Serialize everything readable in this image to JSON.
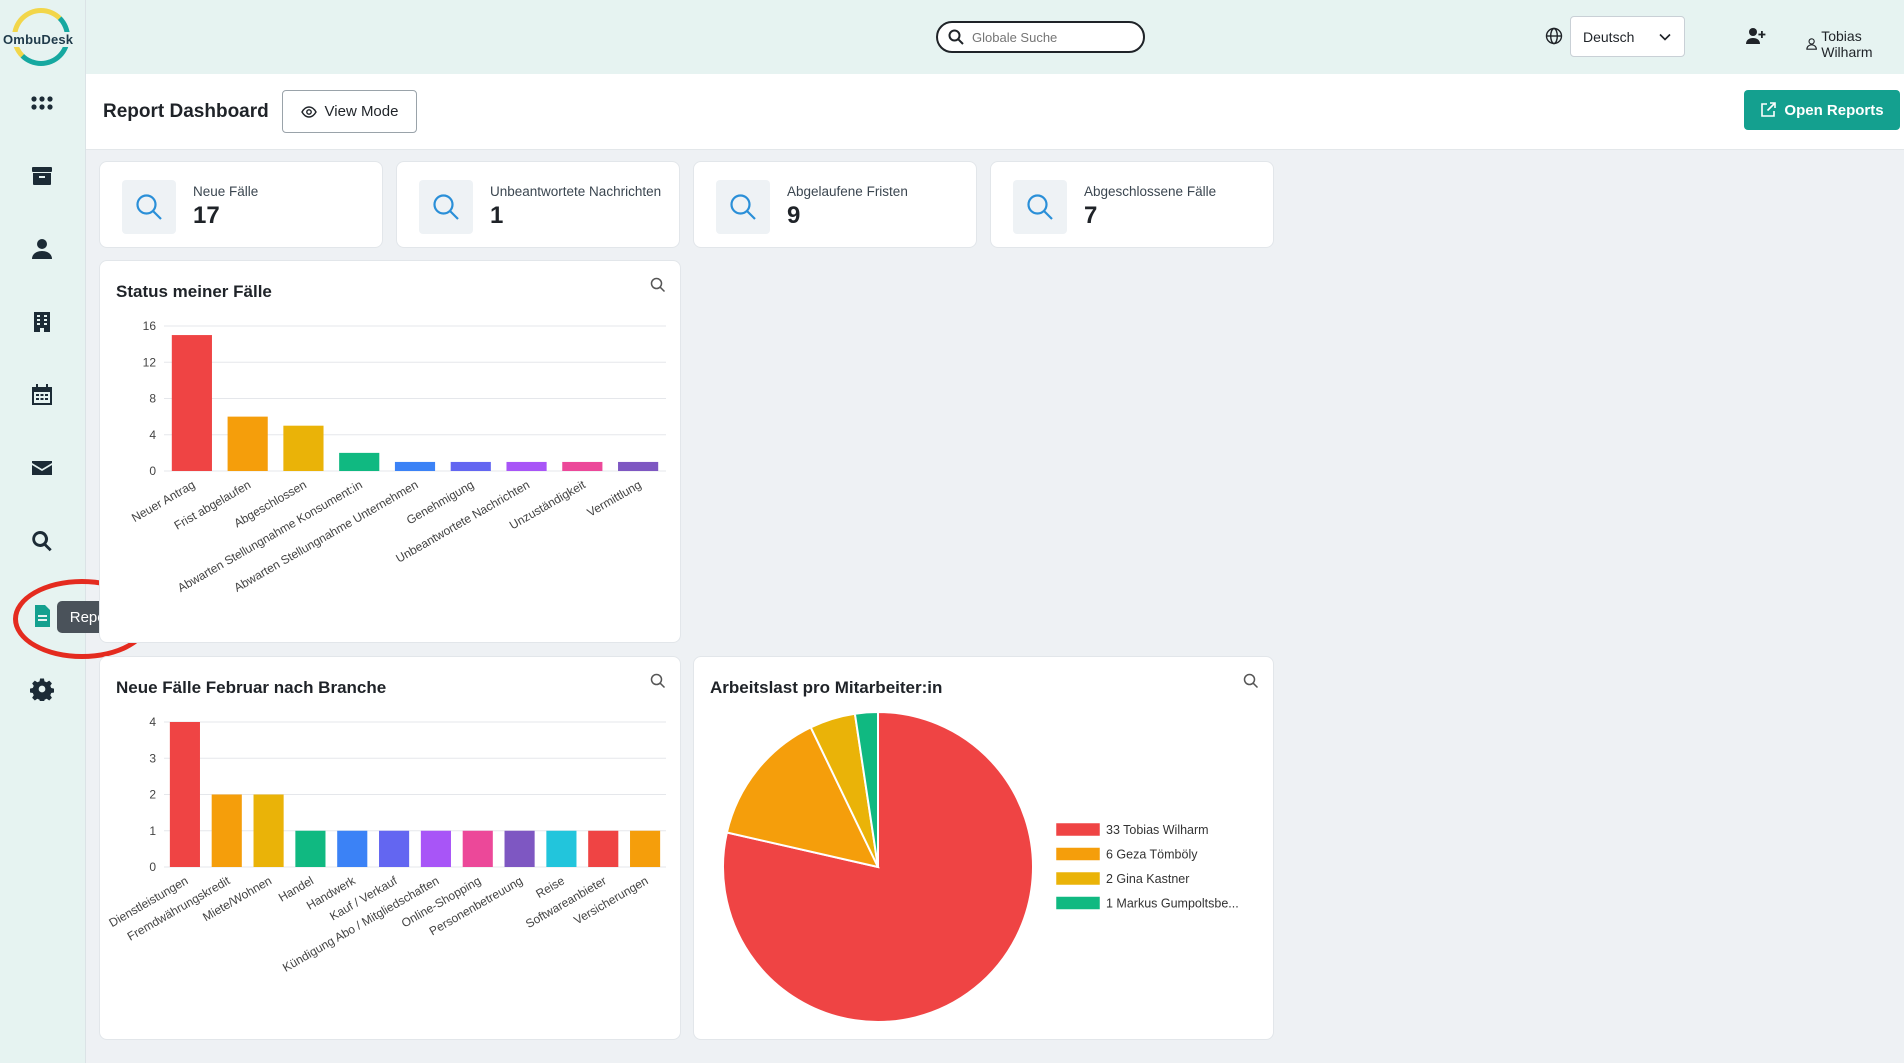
{
  "app": {
    "logo_text": "OmbuDesk"
  },
  "sidebar": {
    "items": [
      {
        "name": "dashboard",
        "icon": "grid-icon"
      },
      {
        "name": "archive",
        "icon": "archive-icon"
      },
      {
        "name": "persons",
        "icon": "person-icon"
      },
      {
        "name": "companies",
        "icon": "building-icon"
      },
      {
        "name": "calendar",
        "icon": "calendar-icon"
      },
      {
        "name": "messages",
        "icon": "mail-icon"
      },
      {
        "name": "search",
        "icon": "search-icon"
      },
      {
        "name": "reports",
        "icon": "report-icon",
        "tooltip": "Reports"
      },
      {
        "name": "settings",
        "icon": "gear-icon"
      }
    ]
  },
  "topbar": {
    "search_placeholder": "Globale Suche",
    "language": "Deutsch",
    "user_name": "Tobias Wilharm"
  },
  "header": {
    "title": "Report Dashboard",
    "view_mode_label": "View Mode",
    "open_reports_label": "Open Reports"
  },
  "stats": [
    {
      "label": "Neue Fälle",
      "value": "17"
    },
    {
      "label": "Unbeantwortete Nachrichten",
      "value": "1"
    },
    {
      "label": "Abgelaufene Fristen",
      "value": "9"
    },
    {
      "label": "Abgeschlossene Fälle",
      "value": "7"
    }
  ],
  "colors": {
    "accent": "#14a08f",
    "red": "#ef4444",
    "orange": "#f59e0b",
    "yellow": "#eab308",
    "green": "#10b981",
    "blue": "#3b82f6",
    "indigo": "#6366f1",
    "purple": "#a855f7",
    "pink": "#ec4899",
    "violet": "#7e57c2",
    "cyan": "#22c5dc"
  },
  "chart_data": [
    {
      "type": "bar",
      "title": "Status meiner Fälle",
      "categories": [
        "Neuer Antrag",
        "Frist abgelaufen",
        "Abgeschlossen",
        "Abwarten Stellungnahme Konsument:in",
        "Abwarten Stellungnahme Unternehmen",
        "Genehmigung",
        "Unbeantwortete Nachrichten",
        "Unzuständigkeit",
        "Vermittlung"
      ],
      "values": [
        15,
        6,
        5,
        2,
        1,
        1,
        1,
        1,
        1
      ],
      "colors": [
        "#ef4444",
        "#f59e0b",
        "#eab308",
        "#10b981",
        "#3b82f6",
        "#6366f1",
        "#a855f7",
        "#ec4899",
        "#7e57c2"
      ],
      "yticks": [
        0,
        4,
        8,
        12,
        16
      ],
      "ylim": [
        0,
        16
      ],
      "grid": true
    },
    {
      "type": "bar",
      "title": "Neue Fälle Februar nach Branche",
      "categories": [
        "Dienstleistungen",
        "Fremdwährungskredit",
        "Miete/Wohnen",
        "Handel",
        "Handwerk",
        "Kauf / Verkauf",
        "Kündigung Abo / Mitgliedschaften",
        "Online-Shopping",
        "Personenbetreuung",
        "Reise",
        "Softwareanbieter",
        "Versicherungen"
      ],
      "values": [
        4,
        2,
        2,
        1,
        1,
        1,
        1,
        1,
        1,
        1,
        1,
        1
      ],
      "colors": [
        "#ef4444",
        "#f59e0b",
        "#eab308",
        "#10b981",
        "#3b82f6",
        "#6366f1",
        "#a855f7",
        "#ec4899",
        "#7e57c2",
        "#22c5dc",
        "#ef4444",
        "#f59e0b"
      ],
      "yticks": [
        0,
        1,
        2,
        3,
        4
      ],
      "ylim": [
        0,
        4
      ],
      "grid": true
    },
    {
      "type": "pie",
      "title": "Arbeitslast pro Mitarbeiter:in",
      "slices": [
        {
          "label": "33 Tobias Wilharm",
          "value": 33,
          "color": "#ef4444"
        },
        {
          "label": "6 Geza Tömböly",
          "value": 6,
          "color": "#f59e0b"
        },
        {
          "label": "2 Gina Kastner",
          "value": 2,
          "color": "#eab308"
        },
        {
          "label": "1 Markus Gumpoltsbe...",
          "value": 1,
          "color": "#10b981"
        }
      ],
      "legend": "right"
    }
  ]
}
